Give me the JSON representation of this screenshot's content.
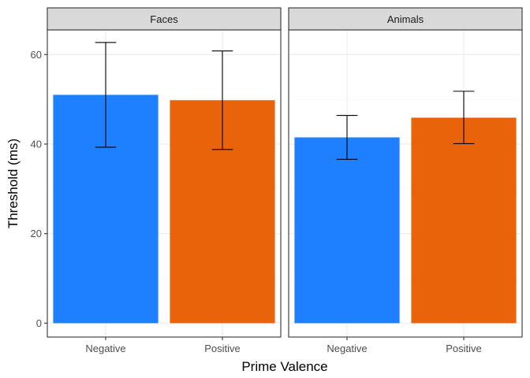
{
  "chart_data": {
    "type": "bar",
    "xlabel": "Prime Valence",
    "ylabel": "Threshold (ms)",
    "ylim": [
      -3.1,
      65.5
    ],
    "yticks": [
      0,
      20,
      40,
      60
    ],
    "categories": [
      "Negative",
      "Positive"
    ],
    "colors": {
      "Negative": "#1E7FFF",
      "Positive": "#E8630A"
    },
    "grid": true,
    "legend": "none",
    "panels": [
      {
        "title": "Faces",
        "bars": [
          {
            "category": "Negative",
            "value": 51.0,
            "error_low": 39.3,
            "error_high": 62.7
          },
          {
            "category": "Positive",
            "value": 49.8,
            "error_low": 38.8,
            "error_high": 60.8
          }
        ]
      },
      {
        "title": "Animals",
        "bars": [
          {
            "category": "Negative",
            "value": 41.5,
            "error_low": 36.6,
            "error_high": 46.4
          },
          {
            "category": "Positive",
            "value": 45.9,
            "error_low": 40.1,
            "error_high": 51.8
          }
        ]
      }
    ]
  }
}
